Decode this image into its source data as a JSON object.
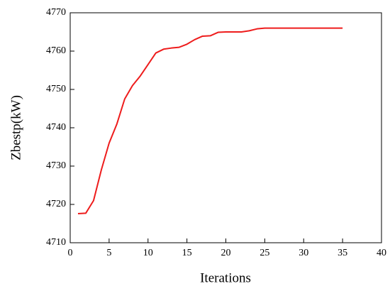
{
  "chart_data": {
    "type": "line",
    "x_label": "Iterations",
    "y_label": "Zbestp(kW)",
    "x": [
      1,
      2,
      3,
      4,
      5,
      6,
      7,
      8,
      9,
      10,
      11,
      12,
      13,
      14,
      15,
      16,
      17,
      18,
      19,
      20,
      21,
      22,
      23,
      24,
      25,
      26,
      27,
      28,
      29,
      30,
      31,
      32,
      33,
      34,
      35
    ],
    "series": [
      {
        "color": "#ee1c1c",
        "values": [
          4717.6,
          4717.7,
          4721,
          4729,
          4736,
          4741,
          4747.5,
          4751,
          4753.5,
          4756.5,
          4759.5,
          4760.5,
          4760.8,
          4761,
          4761.8,
          4763,
          4763.9,
          4764,
          4764.9,
          4765,
          4765,
          4765,
          4765.3,
          4765.8,
          4766,
          4766,
          4766,
          4766,
          4766,
          4766,
          4766,
          4766,
          4766,
          4766,
          4766
        ]
      }
    ],
    "xlim": [
      0,
      40
    ],
    "xticks": [
      0,
      5,
      10,
      15,
      20,
      25,
      30,
      35,
      40
    ],
    "ylim": [
      4710,
      4770
    ],
    "yticks": [
      4710,
      4720,
      4730,
      4740,
      4750,
      4760,
      4770
    ]
  }
}
